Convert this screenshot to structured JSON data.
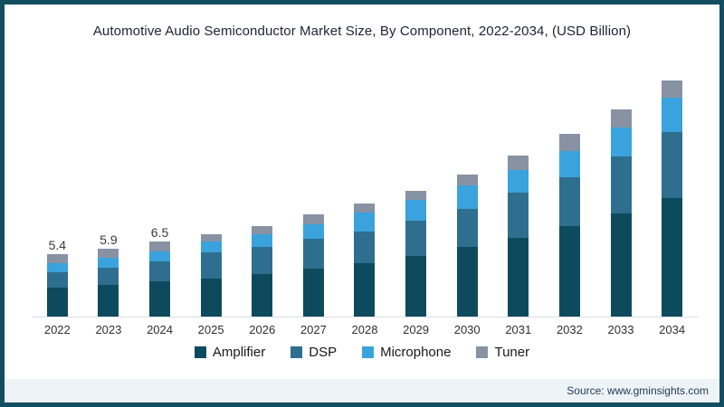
{
  "title": "Automotive Audio Semiconductor Market Size, By Component, 2022-2034, (USD Billion)",
  "source": "Source: www.gminsights.com",
  "accent_colors": {
    "frame_border": "#134e60",
    "axis_line": "#d8dde3",
    "source_strip_bg": "#eef3f8",
    "title_text": "#1a2433"
  },
  "chart_data": {
    "type": "bar",
    "stacked": true,
    "title": "Automotive Audio Semiconductor Market Size, By Component, 2022-2034, (USD Billion)",
    "xlabel": "",
    "ylabel": "USD Billion",
    "ylim": [
      0,
      21
    ],
    "grid": false,
    "y_axis_visible": false,
    "legend_position": "bottom",
    "categories": [
      "2022",
      "2023",
      "2024",
      "2025",
      "2026",
      "2027",
      "2028",
      "2029",
      "2030",
      "2031",
      "2032",
      "2033",
      "2034"
    ],
    "series": [
      {
        "name": "Amplifier",
        "color": "#0e4a5d",
        "values": [
          2.5,
          2.75,
          3.05,
          3.3,
          3.7,
          4.15,
          4.65,
          5.25,
          6.0,
          6.8,
          7.8,
          8.9,
          10.2
        ]
      },
      {
        "name": "DSP",
        "color": "#2e6f90",
        "values": [
          1.3,
          1.5,
          1.75,
          2.25,
          2.3,
          2.6,
          2.7,
          3.0,
          3.3,
          3.9,
          4.2,
          4.9,
          5.7
        ]
      },
      {
        "name": "Microphone",
        "color": "#3aa2dc",
        "values": [
          0.85,
          0.85,
          0.85,
          0.95,
          1.1,
          1.2,
          1.6,
          1.8,
          2.0,
          2.0,
          2.3,
          2.5,
          3.0
        ]
      },
      {
        "name": "Tuner",
        "color": "#8792a2",
        "values": [
          0.75,
          0.8,
          0.85,
          0.65,
          0.7,
          0.85,
          0.85,
          0.85,
          1.0,
          1.2,
          1.5,
          1.6,
          1.5
        ]
      }
    ],
    "totals": [
      5.4,
      5.9,
      6.5,
      7.15,
      7.8,
      8.8,
      9.8,
      10.9,
      12.3,
      13.9,
      15.8,
      17.9,
      20.4
    ],
    "visible_total_labels": [
      "5.4",
      "5.9",
      "6.5",
      "",
      "",
      "",
      "",
      "",
      "",
      "",
      "",
      "",
      ""
    ]
  }
}
